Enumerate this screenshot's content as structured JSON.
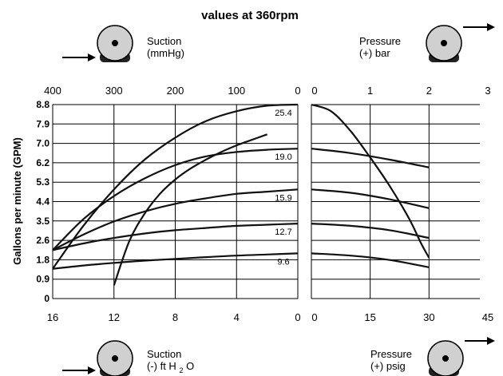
{
  "chart_data": {
    "type": "line",
    "title": "values at 360rpm",
    "ylabel": "Gallons per minute (GPM)",
    "y_ticks": [
      "8.8",
      "7.9",
      "7.0",
      "6.2",
      "5.3",
      "4.4",
      "3.5",
      "2.6",
      "1.8",
      "0.9",
      "0"
    ],
    "ylim": [
      0,
      8.8
    ],
    "suction_panel": {
      "top_axis_label": "Suction\n(mmHg)",
      "top_ticks": [
        "400",
        "300",
        "200",
        "100",
        "0"
      ],
      "bottom_axis_label_main": "Suction\n(-) ft H",
      "bottom_axis_label_sub": "2",
      "bottom_axis_label_tail": "O",
      "bottom_ticks": [
        "16",
        "12",
        "8",
        "4",
        "0"
      ],
      "xlim": [
        16,
        0
      ],
      "series": [
        {
          "label": "25.4",
          "points": [
            [
              16,
              1.35
            ],
            [
              14,
              3.3
            ],
            [
              12,
              4.95
            ],
            [
              10,
              6.3
            ],
            [
              8,
              7.3
            ],
            [
              6,
              8.05
            ],
            [
              4,
              8.5
            ],
            [
              2,
              8.75
            ],
            [
              0,
              8.8
            ]
          ]
        },
        {
          "label": "19.0",
          "points": [
            [
              16,
              2.2
            ],
            [
              14,
              3.6
            ],
            [
              12,
              4.65
            ],
            [
              10,
              5.45
            ],
            [
              8,
              6.05
            ],
            [
              6,
              6.45
            ],
            [
              4,
              6.65
            ],
            [
              2,
              6.75
            ],
            [
              0,
              6.8
            ]
          ]
        },
        {
          "label": "15.9",
          "points": [
            [
              16,
              2.2
            ],
            [
              14,
              2.9
            ],
            [
              12,
              3.5
            ],
            [
              10,
              3.95
            ],
            [
              8,
              4.3
            ],
            [
              6,
              4.55
            ],
            [
              4,
              4.75
            ],
            [
              2,
              4.85
            ],
            [
              0,
              4.95
            ]
          ]
        },
        {
          "label": "12.7",
          "points": [
            [
              16,
              2.2
            ],
            [
              14,
              2.5
            ],
            [
              12,
              2.75
            ],
            [
              10,
              2.95
            ],
            [
              8,
              3.1
            ],
            [
              6,
              3.2
            ],
            [
              4,
              3.3
            ],
            [
              2,
              3.35
            ],
            [
              0,
              3.4
            ]
          ]
        },
        {
          "label": "9.6",
          "points": [
            [
              16,
              1.35
            ],
            [
              14,
              1.5
            ],
            [
              12,
              1.62
            ],
            [
              10,
              1.72
            ],
            [
              8,
              1.8
            ],
            [
              6,
              1.88
            ],
            [
              4,
              1.95
            ],
            [
              2,
              2.0
            ],
            [
              0,
              2.05
            ]
          ]
        },
        {
          "label": "",
          "points": [
            [
              12.0,
              0.6
            ],
            [
              11,
              2.6
            ],
            [
              10,
              3.85
            ],
            [
              9,
              4.75
            ],
            [
              8,
              5.4
            ],
            [
              7,
              5.9
            ],
            [
              6,
              6.3
            ],
            [
              5,
              6.65
            ],
            [
              4,
              6.95
            ],
            [
              3,
              7.2
            ],
            [
              2,
              7.45
            ]
          ]
        }
      ]
    },
    "pressure_panel": {
      "top_axis_label": "Pressure\n(+) bar",
      "top_ticks": [
        "0",
        "1",
        "2",
        "3"
      ],
      "bottom_axis_label": "Pressure\n(+) psig",
      "bottom_ticks": [
        "0",
        "15",
        "30",
        "45"
      ],
      "xlim": [
        0,
        45
      ],
      "series": [
        {
          "points": [
            [
              0,
              8.8
            ],
            [
              5,
              8.5
            ],
            [
              10,
              7.6
            ],
            [
              15,
              6.4
            ],
            [
              20,
              5.1
            ],
            [
              25,
              3.6
            ],
            [
              28,
              2.5
            ],
            [
              30,
              1.85
            ]
          ]
        },
        {
          "points": [
            [
              0,
              6.8
            ],
            [
              10,
              6.6
            ],
            [
              20,
              6.3
            ],
            [
              30,
              5.95
            ]
          ]
        },
        {
          "points": [
            [
              0,
              4.95
            ],
            [
              10,
              4.8
            ],
            [
              20,
              4.5
            ],
            [
              30,
              4.1
            ]
          ]
        },
        {
          "points": [
            [
              0,
              3.4
            ],
            [
              10,
              3.3
            ],
            [
              20,
              3.1
            ],
            [
              30,
              2.75
            ]
          ]
        },
        {
          "points": [
            [
              0,
              2.05
            ],
            [
              10,
              1.95
            ],
            [
              20,
              1.75
            ],
            [
              30,
              1.42
            ]
          ]
        }
      ]
    }
  }
}
